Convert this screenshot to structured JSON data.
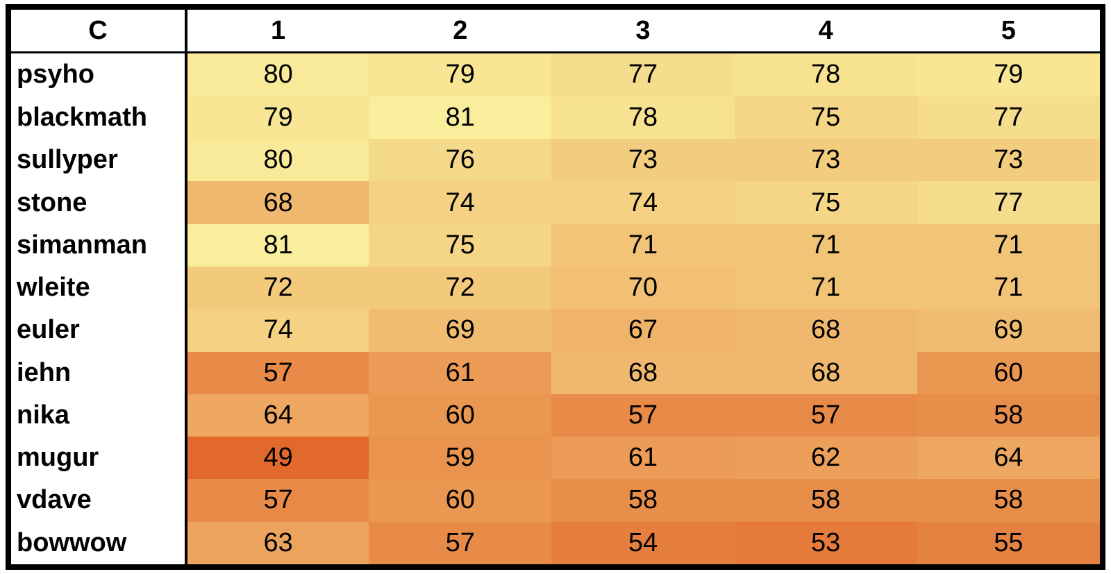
{
  "table": {
    "header": [
      "C",
      "1",
      "2",
      "3",
      "4",
      "5"
    ],
    "rows": [
      {
        "label": "psyho",
        "values": [
          80,
          79,
          77,
          78,
          79
        ]
      },
      {
        "label": "blackmath",
        "values": [
          79,
          81,
          78,
          75,
          77
        ]
      },
      {
        "label": "sullyper",
        "values": [
          80,
          76,
          73,
          73,
          73
        ]
      },
      {
        "label": "stone",
        "values": [
          68,
          74,
          74,
          75,
          77
        ]
      },
      {
        "label": "simanman",
        "values": [
          81,
          75,
          71,
          71,
          71
        ]
      },
      {
        "label": "wleite",
        "values": [
          72,
          72,
          70,
          71,
          71
        ]
      },
      {
        "label": "euler",
        "values": [
          74,
          69,
          67,
          68,
          69
        ]
      },
      {
        "label": "iehn",
        "values": [
          57,
          61,
          68,
          68,
          60
        ]
      },
      {
        "label": "nika",
        "values": [
          64,
          60,
          57,
          57,
          58
        ]
      },
      {
        "label": "mugur",
        "values": [
          49,
          59,
          61,
          62,
          64
        ]
      },
      {
        "label": "vdave",
        "values": [
          57,
          60,
          58,
          58,
          58
        ]
      },
      {
        "label": "bowwow",
        "values": [
          63,
          57,
          54,
          53,
          55
        ]
      }
    ],
    "color_scale": {
      "low": "#e2692c",
      "high": "#f9ee9b"
    }
  }
}
